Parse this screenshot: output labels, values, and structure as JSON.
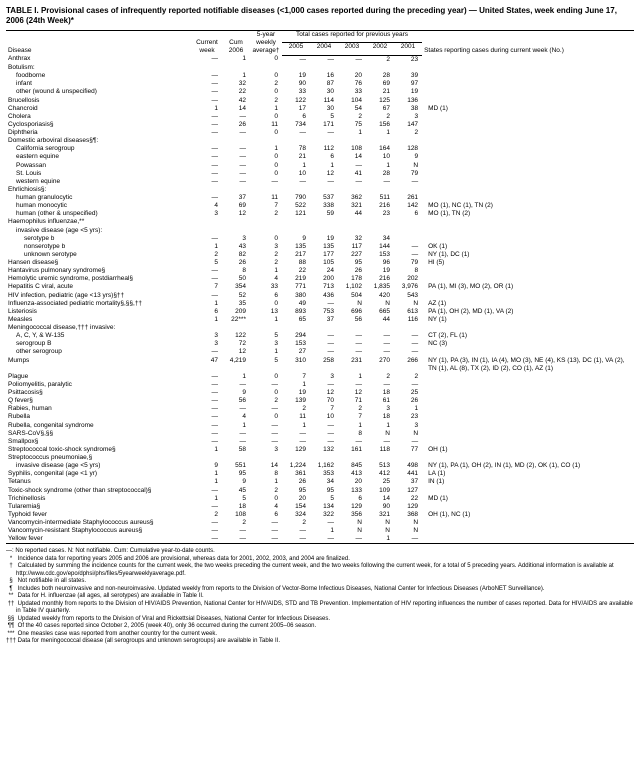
{
  "title": "TABLE I. Provisional cases of infrequently reported notifiable diseases (<1,000 cases reported during the preceding year) — United States, week ending June 17, 2006 (24th Week)*",
  "header": {
    "disease": "Disease",
    "current_week": "Current\nweek",
    "cum_2006": "Cum\n2006",
    "five_year_avg": "5-year\nweekly\naverage†",
    "years_group": "Total cases reported for previous years",
    "y2005": "2005",
    "y2004": "2004",
    "y2003": "2003",
    "y2002": "2002",
    "y2001": "2001",
    "states": "States reporting cases during current week (No.)"
  },
  "rows": [
    {
      "label": "Anthrax",
      "i": 0,
      "v": [
        "—",
        "1",
        "0",
        "—",
        "—",
        "—",
        "2",
        "23"
      ],
      "s": ""
    },
    {
      "label": "Botulism:",
      "i": 0,
      "v": [
        "",
        "",
        "",
        "",
        "",
        "",
        "",
        ""
      ],
      "s": ""
    },
    {
      "label": "foodborne",
      "i": 1,
      "v": [
        "—",
        "1",
        "0",
        "19",
        "16",
        "20",
        "28",
        "39"
      ],
      "s": ""
    },
    {
      "label": "infant",
      "i": 1,
      "v": [
        "—",
        "32",
        "2",
        "90",
        "87",
        "76",
        "69",
        "97"
      ],
      "s": ""
    },
    {
      "label": "other (wound & unspecified)",
      "i": 1,
      "v": [
        "—",
        "22",
        "0",
        "33",
        "30",
        "33",
        "21",
        "19"
      ],
      "s": ""
    },
    {
      "label": "Brucellosis",
      "i": 0,
      "v": [
        "—",
        "42",
        "2",
        "122",
        "114",
        "104",
        "125",
        "136"
      ],
      "s": ""
    },
    {
      "label": "Chancroid",
      "i": 0,
      "v": [
        "1",
        "14",
        "1",
        "17",
        "30",
        "54",
        "67",
        "38"
      ],
      "s": "MD (1)"
    },
    {
      "label": "Cholera",
      "i": 0,
      "v": [
        "—",
        "—",
        "0",
        "6",
        "5",
        "2",
        "2",
        "3"
      ],
      "s": ""
    },
    {
      "label": "Cyclosporiasis§",
      "i": 0,
      "v": [
        "—",
        "26",
        "11",
        "734",
        "171",
        "75",
        "156",
        "147"
      ],
      "s": ""
    },
    {
      "label": "Diphtheria",
      "i": 0,
      "v": [
        "—",
        "—",
        "0",
        "—",
        "—",
        "1",
        "1",
        "2"
      ],
      "s": ""
    },
    {
      "label": "Domestic arboviral diseases§¶:",
      "i": 0,
      "v": [
        "",
        "",
        "",
        "",
        "",
        "",
        "",
        ""
      ],
      "s": ""
    },
    {
      "label": "California serogroup",
      "i": 1,
      "v": [
        "—",
        "—",
        "1",
        "78",
        "112",
        "108",
        "164",
        "128"
      ],
      "s": ""
    },
    {
      "label": "eastern equine",
      "i": 1,
      "v": [
        "—",
        "—",
        "0",
        "21",
        "6",
        "14",
        "10",
        "9"
      ],
      "s": ""
    },
    {
      "label": "Powassan",
      "i": 1,
      "v": [
        "—",
        "—",
        "0",
        "1",
        "1",
        "—",
        "1",
        "N"
      ],
      "s": ""
    },
    {
      "label": "St. Louis",
      "i": 1,
      "v": [
        "—",
        "—",
        "0",
        "10",
        "12",
        "41",
        "28",
        "79"
      ],
      "s": ""
    },
    {
      "label": "western equine",
      "i": 1,
      "v": [
        "—",
        "—",
        "—",
        "—",
        "—",
        "—",
        "—",
        "—"
      ],
      "s": ""
    },
    {
      "label": "Ehrlichiosis§:",
      "i": 0,
      "v": [
        "",
        "",
        "",
        "",
        "",
        "",
        "",
        ""
      ],
      "s": ""
    },
    {
      "label": "human granulocytic",
      "i": 1,
      "v": [
        "—",
        "37",
        "11",
        "790",
        "537",
        "362",
        "511",
        "261"
      ],
      "s": ""
    },
    {
      "label": "human monocytic",
      "i": 1,
      "v": [
        "4",
        "69",
        "7",
        "522",
        "338",
        "321",
        "216",
        "142"
      ],
      "s": "MO (1), NC (1), TN (2)"
    },
    {
      "label": "human (other & unspecified)",
      "i": 1,
      "v": [
        "3",
        "12",
        "2",
        "121",
        "59",
        "44",
        "23",
        "6"
      ],
      "s": "MO (1), TN (2)"
    },
    {
      "label": "Haemophilus influenzae,**",
      "i": 0,
      "v": [
        "",
        "",
        "",
        "",
        "",
        "",
        "",
        ""
      ],
      "s": ""
    },
    {
      "label": "invasive disease (age <5 yrs):",
      "i": 1,
      "v": [
        "",
        "",
        "",
        "",
        "",
        "",
        "",
        ""
      ],
      "s": ""
    },
    {
      "label": "serotype b",
      "i": 2,
      "v": [
        "—",
        "3",
        "0",
        "9",
        "19",
        "32",
        "34",
        " "
      ],
      "s": ""
    },
    {
      "label": "nonserotype b",
      "i": 2,
      "v": [
        "1",
        "43",
        "3",
        "135",
        "135",
        "117",
        "144",
        "—"
      ],
      "s": "OK (1)"
    },
    {
      "label": "unknown serotype",
      "i": 2,
      "v": [
        "2",
        "82",
        "2",
        "217",
        "177",
        "227",
        "153",
        "—"
      ],
      "s": "NY (1), DC (1)"
    },
    {
      "label": "Hansen disease§",
      "i": 0,
      "v": [
        "5",
        "26",
        "2",
        "88",
        "105",
        "95",
        "96",
        "79"
      ],
      "s": "HI (5)"
    },
    {
      "label": "Hantavirus pulmonary syndrome§",
      "i": 0,
      "v": [
        "—",
        "8",
        "1",
        "22",
        "24",
        "26",
        "19",
        "8"
      ],
      "s": ""
    },
    {
      "label": "Hemolytic uremic syndrome, postdiarrheal§",
      "i": 0,
      "v": [
        "—",
        "50",
        "4",
        "219",
        "200",
        "178",
        "216",
        "202"
      ],
      "s": ""
    },
    {
      "label": "Hepatitis C viral, acute",
      "i": 0,
      "v": [
        "7",
        "354",
        "33",
        "771",
        "713",
        "1,102",
        "1,835",
        "3,976"
      ],
      "s": "PA (1), MI (3), MO (2), OR (1)"
    },
    {
      "label": "HIV infection, pediatric (age <13 yrs)§††",
      "i": 0,
      "v": [
        "—",
        "52",
        "6",
        "380",
        "436",
        "504",
        "420",
        "543"
      ],
      "s": ""
    },
    {
      "label": "Influenza-associated pediatric mortality§,§§,††",
      "i": 0,
      "v": [
        "1",
        "35",
        "0",
        "49",
        "—",
        "N",
        "N",
        "N"
      ],
      "s": "AZ (1)"
    },
    {
      "label": "Listeriosis",
      "i": 0,
      "v": [
        "6",
        "209",
        "13",
        "893",
        "753",
        "696",
        "665",
        "613"
      ],
      "s": "PA (1), OH (2), MD (1), VA (2)"
    },
    {
      "label": "Measles",
      "i": 0,
      "v": [
        "1",
        "22***",
        "1",
        "65",
        "37",
        "56",
        "44",
        "116"
      ],
      "s": "NY (1)"
    },
    {
      "label": "Meningococcal disease,††† invasive:",
      "i": 0,
      "v": [
        "",
        "",
        "",
        "",
        "",
        "",
        "",
        ""
      ],
      "s": ""
    },
    {
      "label": "A, C, Y, & W-135",
      "i": 1,
      "v": [
        "3",
        "122",
        "5",
        "294",
        "—",
        "—",
        "—",
        "—"
      ],
      "s": "CT (2), FL (1)"
    },
    {
      "label": "serogroup B",
      "i": 1,
      "v": [
        "3",
        "72",
        "3",
        "153",
        "—",
        "—",
        "—",
        "—"
      ],
      "s": "NC (3)"
    },
    {
      "label": "other serogroup",
      "i": 1,
      "v": [
        "—",
        "12",
        "1",
        "27",
        "—",
        "—",
        "—",
        "—"
      ],
      "s": ""
    },
    {
      "label": "Mumps",
      "i": 0,
      "v": [
        "47",
        "4,219",
        "5",
        "310",
        "258",
        "231",
        "270",
        "266"
      ],
      "s": "NY (1), PA (3), IN (1), IA (4), MO (3), NE (4), KS (13), DC (1), VA (2), TN (1), AL (8), TX (2), ID (2), CO (1), AZ (1)"
    },
    {
      "label": "Plague",
      "i": 0,
      "v": [
        "—",
        "1",
        "0",
        "7",
        "3",
        "1",
        "2",
        "2"
      ],
      "s": ""
    },
    {
      "label": "Poliomyelitis, paralytic",
      "i": 0,
      "v": [
        "—",
        "—",
        "—",
        "1",
        "—",
        "—",
        "—",
        "—"
      ],
      "s": ""
    },
    {
      "label": "Psittacosis§",
      "i": 0,
      "v": [
        "—",
        "9",
        "0",
        "19",
        "12",
        "12",
        "18",
        "25"
      ],
      "s": ""
    },
    {
      "label": "Q fever§",
      "i": 0,
      "v": [
        "—",
        "56",
        "2",
        "139",
        "70",
        "71",
        "61",
        "26"
      ],
      "s": ""
    },
    {
      "label": "Rabies, human",
      "i": 0,
      "v": [
        "—",
        "—",
        "—",
        "2",
        "7",
        "2",
        "3",
        "1"
      ],
      "s": ""
    },
    {
      "label": "Rubella",
      "i": 0,
      "v": [
        "—",
        "4",
        "0",
        "11",
        "10",
        "7",
        "18",
        "23"
      ],
      "s": ""
    },
    {
      "label": "Rubella, congenital syndrome",
      "i": 0,
      "v": [
        "—",
        "1",
        "—",
        "1",
        "—",
        "1",
        "1",
        "3"
      ],
      "s": ""
    },
    {
      "label": "SARS-CoV§,§§",
      "i": 0,
      "v": [
        "—",
        "—",
        "—",
        "—",
        "—",
        "8",
        "N",
        "N"
      ],
      "s": ""
    },
    {
      "label": "Smallpox§",
      "i": 0,
      "v": [
        "—",
        "—",
        "—",
        "—",
        "—",
        "—",
        "—",
        "—"
      ],
      "s": ""
    },
    {
      "label": "Streptococcal toxic-shock syndrome§",
      "i": 0,
      "v": [
        "1",
        "58",
        "3",
        "129",
        "132",
        "161",
        "118",
        "77"
      ],
      "s": "OH (1)"
    },
    {
      "label": "Streptococcus pneumoniae,§",
      "i": 0,
      "v": [
        "",
        "",
        "",
        "",
        "",
        "",
        "",
        ""
      ],
      "s": ""
    },
    {
      "label": "invasive disease (age <5 yrs)",
      "i": 1,
      "v": [
        "9",
        "551",
        "14",
        "1,224",
        "1,162",
        "845",
        "513",
        "498"
      ],
      "s": "NY (1), PA (1), OH (2), IN (1), MD (2), OK (1), CO (1)"
    },
    {
      "label": "Syphilis, congenital (age <1 yr)",
      "i": 0,
      "v": [
        "1",
        "95",
        "8",
        "361",
        "353",
        "413",
        "412",
        "441"
      ],
      "s": "LA (1)"
    },
    {
      "label": "Tetanus",
      "i": 0,
      "v": [
        "1",
        "9",
        "1",
        "26",
        "34",
        "20",
        "25",
        "37"
      ],
      "s": "IN (1)"
    },
    {
      "label": "Toxic-shock syndrome (other than streptococcal)§",
      "i": 0,
      "v": [
        "—",
        "45",
        "2",
        "95",
        "95",
        "133",
        "109",
        "127"
      ],
      "s": ""
    },
    {
      "label": "Trichinellosis",
      "i": 0,
      "v": [
        "1",
        "5",
        "0",
        "20",
        "5",
        "6",
        "14",
        "22"
      ],
      "s": "MD (1)"
    },
    {
      "label": "Tularemia§",
      "i": 0,
      "v": [
        "—",
        "18",
        "4",
        "154",
        "134",
        "129",
        "90",
        "129"
      ],
      "s": ""
    },
    {
      "label": "Typhoid fever",
      "i": 0,
      "v": [
        "2",
        "108",
        "6",
        "324",
        "322",
        "356",
        "321",
        "368"
      ],
      "s": "OH (1), NC (1)"
    },
    {
      "label": "Vancomycin-intermediate Staphylococcus aureus§",
      "i": 0,
      "v": [
        "—",
        "2",
        "—",
        "2",
        "—",
        "N",
        "N",
        "N"
      ],
      "s": ""
    },
    {
      "label": "Vancomycin-resistant Staphylococcus aureus§",
      "i": 0,
      "v": [
        "—",
        "—",
        "—",
        "—",
        "1",
        "N",
        "N",
        "N"
      ],
      "s": ""
    },
    {
      "label": "Yellow fever",
      "i": 0,
      "v": [
        "—",
        "—",
        "—",
        "—",
        "—",
        "—",
        "1",
        "—"
      ],
      "s": ""
    }
  ],
  "legend": "—: No reported cases.        N: Not notifiable.        Cum: Cumulative year-to-date counts.",
  "footnotes": [
    {
      "sym": "*",
      "text": "Incidence data for reporting years 2005 and 2006 are provisional, whereas data for 2001, 2002, 2003, and 2004 are finalized."
    },
    {
      "sym": "†",
      "text": "Calculated by summing the incidence counts for the current week, the two weeks preceding the current week, and the two weeks following the current week, for a total of 5 preceding years. Additional information is available at http://www.cdc.gov/epo/dphsi/phs/files/5yearweeklyaverage.pdf."
    },
    {
      "sym": "§",
      "text": "Not notifiable in all states."
    },
    {
      "sym": "¶",
      "text": "Includes both neuroinvasive and non-neuroinvasive. Updated weekly from reports to the Division of Vector-Borne Infectious Diseases, National Center for Infectious Diseases (ArboNET Surveillance)."
    },
    {
      "sym": "**",
      "text": "Data for H. influenzae (all ages, all serotypes) are available in Table II."
    },
    {
      "sym": "††",
      "text": "Updated monthly from reports to the Division of HIV/AIDS Prevention, National Center for HIV/AIDS, STD and TB Prevention. Implementation of HIV reporting influences the number of cases reported. Data for HIV/AIDS are available in Table IV quarterly."
    },
    {
      "sym": "§§",
      "text": "Updated weekly from reports to the Division of Viral and Rickettsial Diseases, National Center for Infectious Diseases."
    },
    {
      "sym": "¶¶",
      "text": "Of the 40 cases reported since October 2, 2005 (week 40), only 36 occurred during the current 2005–06 season."
    },
    {
      "sym": "***",
      "text": "One measles case was reported from another country for the current week."
    },
    {
      "sym": "†††",
      "text": "Data for meningococcal disease (all serogroups and unknown serogroups) are available in Table II."
    }
  ]
}
